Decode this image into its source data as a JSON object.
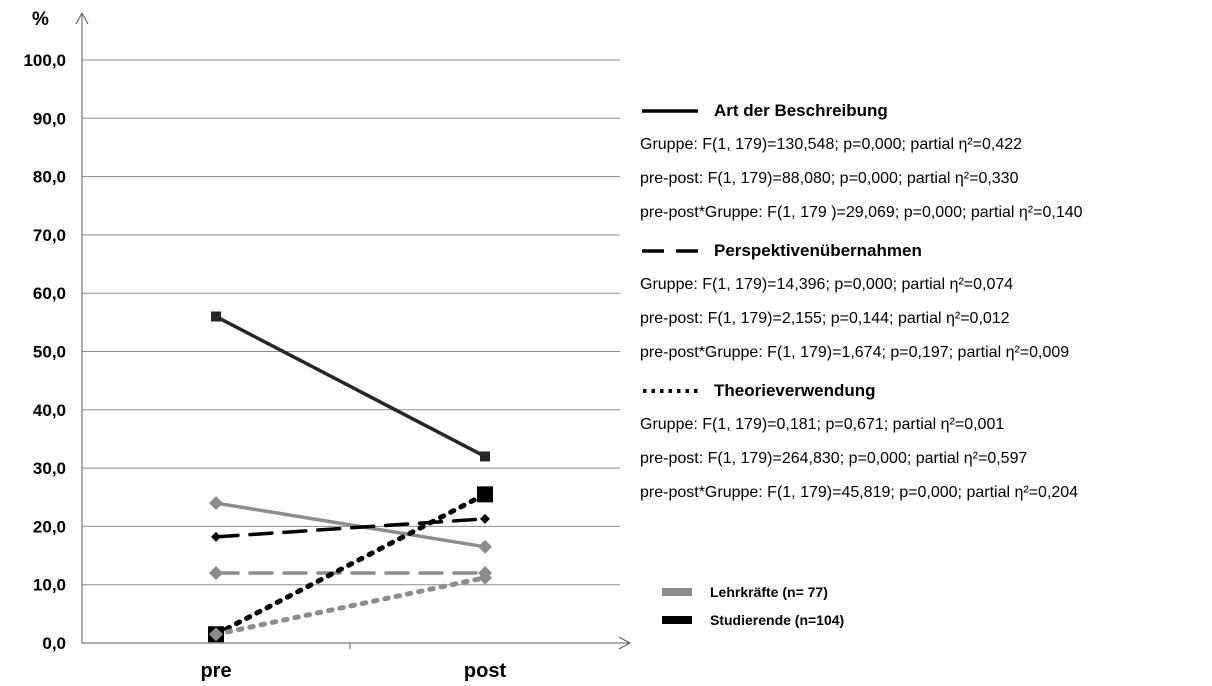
{
  "chart_data": {
    "type": "line",
    "unit_label": "%",
    "categories": [
      "pre",
      "post"
    ],
    "ylim": [
      0,
      100
    ],
    "y_ticks": [
      "0,0",
      "10,0",
      "20,0",
      "30,0",
      "40,0",
      "50,0",
      "60,0",
      "70,0",
      "80,0",
      "90,0",
      "100,0"
    ],
    "grid": true,
    "series": [
      {
        "measure": "Art der Beschreibung",
        "group": "Studierende (n=104)",
        "values": [
          56.0,
          32.0
        ],
        "color": "#262626",
        "dash": "solid",
        "marker": "small-square"
      },
      {
        "measure": "Art der Beschreibung",
        "group": "Lehrkräfte (n= 77)",
        "values": [
          24.0,
          16.5
        ],
        "color": "#8c8c8c",
        "dash": "solid",
        "marker": "diamond"
      },
      {
        "measure": "Perspektivenübernahmen",
        "group": "Studierende (n=104)",
        "values": [
          18.2,
          21.3
        ],
        "color": "#000000",
        "dash": "dashed",
        "marker": "diamond"
      },
      {
        "measure": "Perspektivenübernahmen",
        "group": "Lehrkräfte (n= 77)",
        "values": [
          12.0,
          12.0
        ],
        "color": "#8c8c8c",
        "dash": "dashed",
        "marker": "diamond"
      },
      {
        "measure": "Theorieverwendung",
        "group": "Studierende (n=104)",
        "values": [
          1.5,
          25.5
        ],
        "color": "#000000",
        "dash": "dotted",
        "marker": "big-square"
      },
      {
        "measure": "Theorieverwendung",
        "group": "Lehrkräfte (n= 77)",
        "values": [
          1.5,
          11.2
        ],
        "color": "#8c8c8c",
        "dash": "dotted",
        "marker": "diamond"
      }
    ],
    "legend": {
      "measures": [
        {
          "name": "Art der Beschreibung",
          "style": "solid",
          "stats": [
            "Gruppe: F(1, 179)=130,548; p=0,000; partial η²=0,422",
            "pre-post: F(1, 179)=88,080; p=0,000; partial η²=0,330",
            "pre-post*Gruppe: F(1, 179 )=29,069; p=0,000; partial η²=0,140"
          ]
        },
        {
          "name": "Perspektivenübernahmen",
          "style": "dashed",
          "stats": [
            "Gruppe: F(1, 179)=14,396; p=0,000; partial η²=0,074",
            "pre-post: F(1, 179)=2,155; p=0,144; partial η²=0,012",
            "pre-post*Gruppe: F(1, 179)=1,674; p=0,197; partial η²=0,009"
          ]
        },
        {
          "name": "Theorieverwendung",
          "style": "dotted",
          "stats": [
            "Gruppe: F(1, 179)=0,181; p=0,671; partial η²=0,001",
            "pre-post: F(1, 179)=264,830; p=0,000; partial η²=0,597",
            "pre-post*Gruppe: F(1, 179)=45,819; p=0,000; partial η²=0,204"
          ]
        }
      ],
      "groups": [
        {
          "name": "Lehrkräfte (n= 77)",
          "color": "#8c8c8c"
        },
        {
          "name": "Studierende (n=104)",
          "color": "#000000"
        }
      ]
    }
  }
}
